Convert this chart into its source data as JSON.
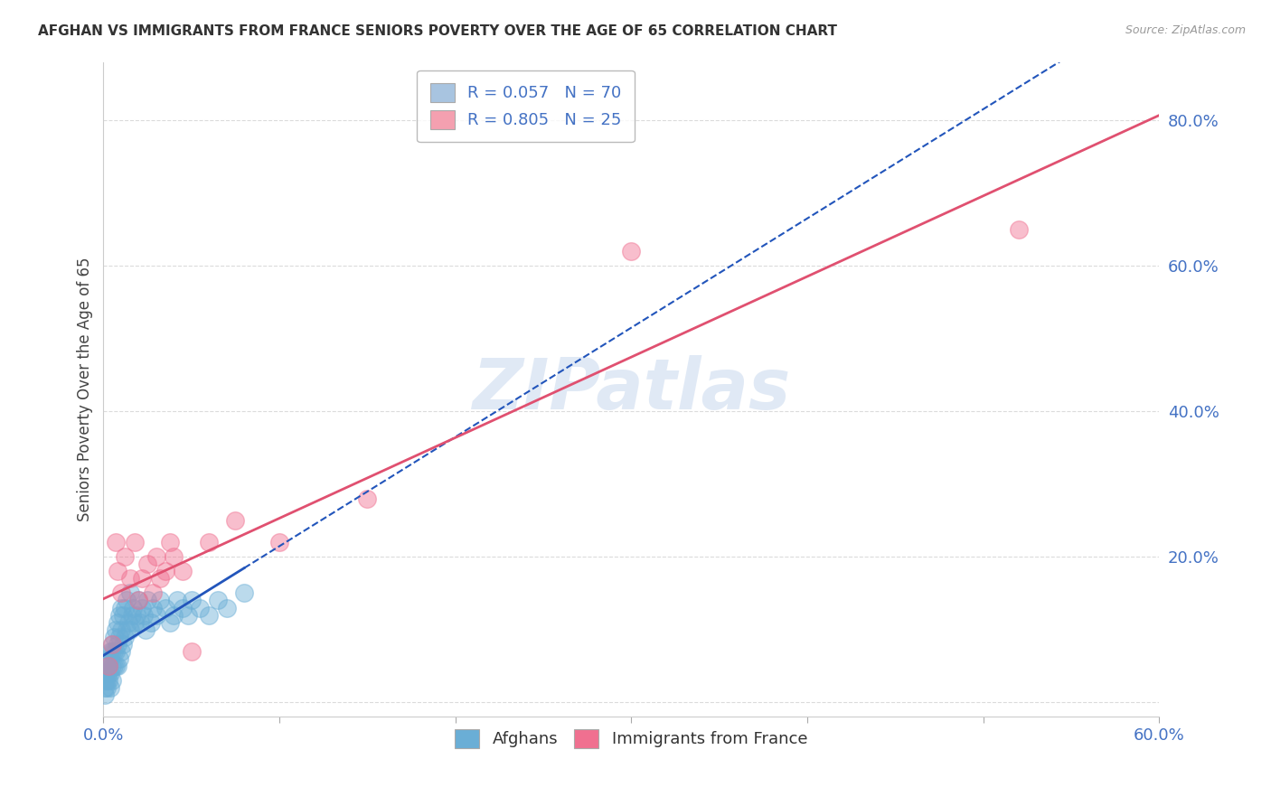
{
  "title": "AFGHAN VS IMMIGRANTS FROM FRANCE SENIORS POVERTY OVER THE AGE OF 65 CORRELATION CHART",
  "source": "Source: ZipAtlas.com",
  "ylabel": "Seniors Poverty Over the Age of 65",
  "watermark": "ZIPatlas",
  "legend_entries": [
    {
      "label": "R = 0.057   N = 70",
      "color": "#a8c4e0"
    },
    {
      "label": "R = 0.805   N = 25",
      "color": "#f4a0b0"
    }
  ],
  "legend_label_afghans": "Afghans",
  "legend_label_france": "Immigrants from France",
  "afghans_color": "#6aaed6",
  "france_color": "#f07090",
  "trend_afghan_color": "#2255bb",
  "trend_france_color": "#e05070",
  "xlim": [
    0.0,
    0.6
  ],
  "ylim": [
    -0.02,
    0.88
  ],
  "ytick_positions": [
    0.0,
    0.2,
    0.4,
    0.6,
    0.8
  ],
  "ytick_labels": [
    "",
    "20.0%",
    "40.0%",
    "60.0%",
    "80.0%"
  ],
  "background_color": "#ffffff",
  "grid_color": "#cccccc",
  "afghans_x": [
    0.001,
    0.001,
    0.001,
    0.001,
    0.002,
    0.002,
    0.002,
    0.002,
    0.003,
    0.003,
    0.003,
    0.003,
    0.004,
    0.004,
    0.004,
    0.004,
    0.005,
    0.005,
    0.005,
    0.005,
    0.006,
    0.006,
    0.006,
    0.007,
    0.007,
    0.007,
    0.008,
    0.008,
    0.008,
    0.009,
    0.009,
    0.009,
    0.01,
    0.01,
    0.01,
    0.011,
    0.011,
    0.012,
    0.012,
    0.013,
    0.013,
    0.014,
    0.015,
    0.015,
    0.016,
    0.017,
    0.018,
    0.019,
    0.02,
    0.021,
    0.022,
    0.023,
    0.024,
    0.025,
    0.027,
    0.028,
    0.03,
    0.032,
    0.035,
    0.038,
    0.04,
    0.042,
    0.045,
    0.048,
    0.05,
    0.055,
    0.06,
    0.065,
    0.07,
    0.08
  ],
  "afghans_y": [
    0.04,
    0.03,
    0.02,
    0.01,
    0.05,
    0.04,
    0.03,
    0.02,
    0.06,
    0.05,
    0.04,
    0.03,
    0.07,
    0.06,
    0.04,
    0.02,
    0.08,
    0.07,
    0.05,
    0.03,
    0.09,
    0.07,
    0.05,
    0.1,
    0.07,
    0.05,
    0.11,
    0.08,
    0.05,
    0.12,
    0.09,
    0.06,
    0.13,
    0.1,
    0.07,
    0.12,
    0.08,
    0.13,
    0.09,
    0.14,
    0.1,
    0.11,
    0.15,
    0.1,
    0.12,
    0.13,
    0.11,
    0.12,
    0.14,
    0.11,
    0.13,
    0.12,
    0.1,
    0.14,
    0.11,
    0.13,
    0.12,
    0.14,
    0.13,
    0.11,
    0.12,
    0.14,
    0.13,
    0.12,
    0.14,
    0.13,
    0.12,
    0.14,
    0.13,
    0.15
  ],
  "france_x": [
    0.003,
    0.005,
    0.007,
    0.008,
    0.01,
    0.012,
    0.015,
    0.018,
    0.02,
    0.022,
    0.025,
    0.028,
    0.03,
    0.032,
    0.035,
    0.038,
    0.04,
    0.045,
    0.05,
    0.06,
    0.075,
    0.1,
    0.15,
    0.3,
    0.52
  ],
  "france_y": [
    0.05,
    0.08,
    0.22,
    0.18,
    0.15,
    0.2,
    0.17,
    0.22,
    0.14,
    0.17,
    0.19,
    0.15,
    0.2,
    0.17,
    0.18,
    0.22,
    0.2,
    0.18,
    0.07,
    0.22,
    0.25,
    0.22,
    0.28,
    0.62,
    0.65
  ]
}
